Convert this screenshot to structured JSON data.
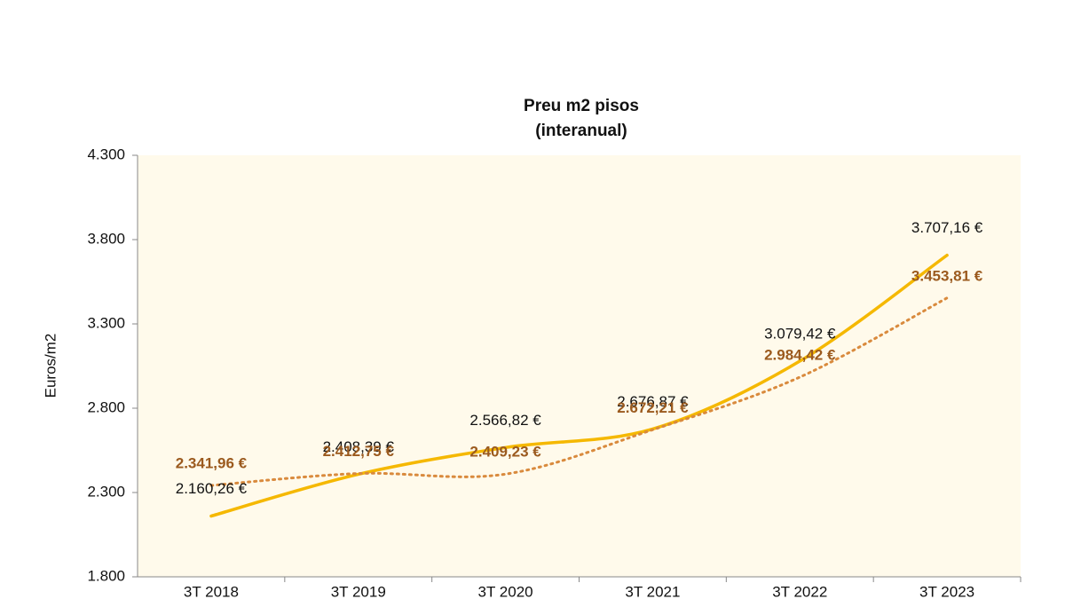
{
  "chart_data": {
    "type": "line",
    "title": "Preu m2 pisos",
    "subtitle": "(interanual)",
    "ylabel": "Euros/m2",
    "categories": [
      "3T 2018",
      "3T 2019",
      "3T 2020",
      "3T 2021",
      "3T 2022",
      "3T 2023"
    ],
    "series": [
      {
        "color": "#f5b800",
        "style": "solid",
        "label_color": "#111111",
        "values": [
          2160.26,
          2408.39,
          2566.82,
          2676.87,
          3079.42,
          3707.16
        ],
        "value_labels": [
          "2.160,26 €",
          "2.408,39 €",
          "2.566,82 €",
          "2.676,87 €",
          "3.079,42 €",
          "3.707,16 €"
        ]
      },
      {
        "color": "#d98a3d",
        "style": "dotted",
        "label_color": "#9b5a1e",
        "values": [
          2341.96,
          2412.75,
          2409.23,
          2672.21,
          2984.42,
          3453.81
        ],
        "value_labels": [
          "2.341,96 €",
          "2.412,75 €",
          "2.409,23 €",
          "2.672,21 €",
          "2.984,42 €",
          "3.453,81 €"
        ]
      }
    ],
    "ylim": [
      1800,
      4300
    ],
    "yticks": [
      {
        "value": 1800,
        "label": "1.800"
      },
      {
        "value": 2300,
        "label": "2.300"
      },
      {
        "value": 2800,
        "label": "2.800"
      },
      {
        "value": 3300,
        "label": "3.300"
      },
      {
        "value": 3800,
        "label": "3.800"
      },
      {
        "value": 4300,
        "label": "4.300"
      }
    ],
    "plot_background": "#fffaeb"
  }
}
